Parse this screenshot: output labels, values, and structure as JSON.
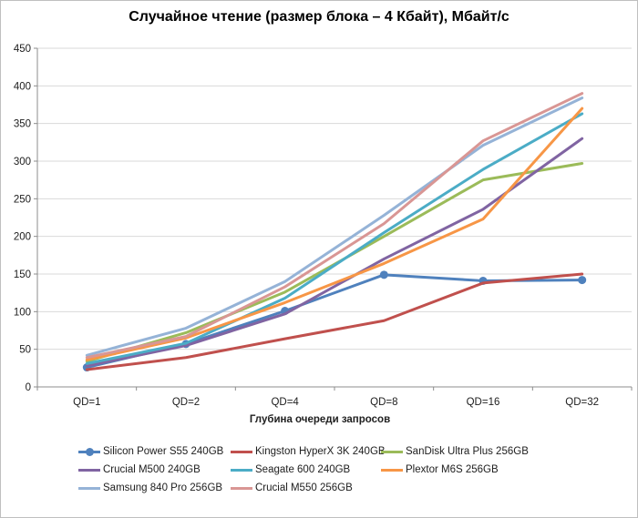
{
  "frame": {
    "background": "#ffffff",
    "border_color": "#bfbfbf"
  },
  "chart_data": {
    "type": "line",
    "title": "Случайное чтение (размер блока – 4 Кбайт), Мбайт/с",
    "xlabel": "Глубина очереди запросов",
    "categories": [
      "QD=1",
      "QD=2",
      "QD=4",
      "QD=8",
      "QD=16",
      "QD=32"
    ],
    "ylim": [
      0,
      450
    ],
    "ytick_step": 50,
    "grid": "horizontal-only",
    "legend_position": "bottom",
    "axis_color": "#8c8c8c",
    "gridline_color": "#d9d9d9",
    "text_color": "#202020",
    "series": [
      {
        "name": "Silicon Power S55 240GB",
        "color": "#4F81BD",
        "marker": "circle",
        "values": [
          26,
          57,
          101,
          149,
          141,
          142
        ]
      },
      {
        "name": "Kingston HyperX 3K 240GB",
        "color": "#C0504D",
        "marker": "none",
        "values": [
          23,
          39,
          64,
          88,
          138,
          150
        ]
      },
      {
        "name": "SanDisk Ultra Plus 256GB",
        "color": "#9BBB59",
        "marker": "none",
        "values": [
          34,
          72,
          126,
          200,
          275,
          297
        ]
      },
      {
        "name": "Crucial M500 240GB",
        "color": "#8064A2",
        "marker": "none",
        "values": [
          28,
          55,
          97,
          170,
          236,
          330
        ]
      },
      {
        "name": "Seagate 600 240GB",
        "color": "#4BACC6",
        "marker": "none",
        "values": [
          31,
          58,
          118,
          205,
          289,
          363
        ]
      },
      {
        "name": "Plextor M6S 256GB",
        "color": "#F79646",
        "marker": "none",
        "values": [
          36,
          65,
          112,
          164,
          223,
          370
        ]
      },
      {
        "name": "Samsung 840 Pro 256GB",
        "color": "#95B3D7",
        "marker": "none",
        "values": [
          42,
          78,
          140,
          228,
          321,
          384
        ]
      },
      {
        "name": "Crucial M550 256GB",
        "color": "#D99694",
        "marker": "none",
        "values": [
          39,
          67,
          133,
          217,
          327,
          390
        ]
      }
    ]
  }
}
